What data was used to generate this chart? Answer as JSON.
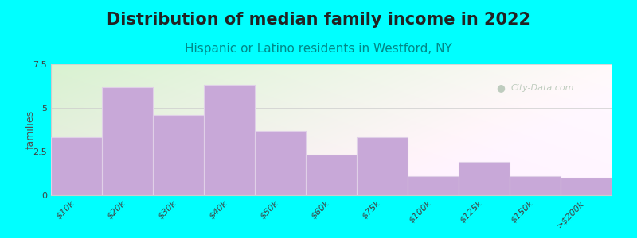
{
  "title": "Distribution of median family income in 2022",
  "subtitle": "Hispanic or Latino residents in Westford, NY",
  "ylabel": "families",
  "categories": [
    "$10k",
    "$20k",
    "$30k",
    "$40k",
    "$50k",
    "$60k",
    "$75k",
    "$100k",
    "$125k",
    "$150k",
    ">$200k"
  ],
  "values": [
    3.3,
    6.2,
    4.6,
    6.3,
    3.7,
    2.3,
    3.3,
    1.1,
    1.9,
    1.1,
    1.0
  ],
  "bar_color": "#c8a8d8",
  "bar_edge_color": "#e0d0e8",
  "ylim": [
    0,
    7.5
  ],
  "yticks": [
    0,
    2.5,
    5,
    7.5
  ],
  "background_outer": "#00ffff",
  "background_plot_topleft": "#d8f0d0",
  "background_plot_right": "#f8f8f8",
  "title_fontsize": 15,
  "subtitle_fontsize": 11,
  "subtitle_color": "#008888",
  "ylabel_fontsize": 9,
  "tick_fontsize": 8,
  "watermark_text": "City-Data.com",
  "watermark_color": "#b8c8b8"
}
